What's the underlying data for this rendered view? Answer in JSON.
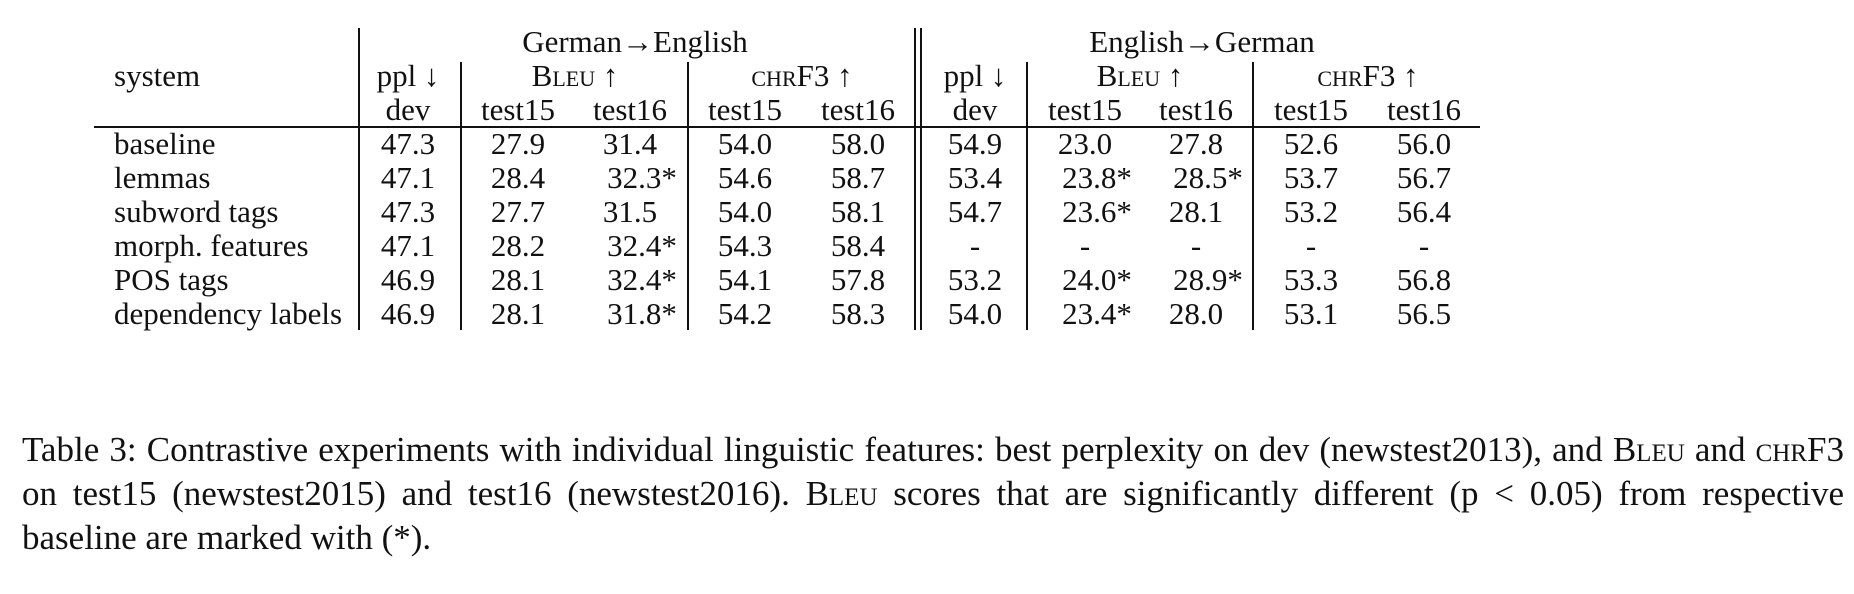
{
  "table": {
    "group_headers": [
      "German→English",
      "English→German"
    ],
    "system_header": "system",
    "metric_headers": {
      "ppl": "ppl ↓",
      "bleu": "Bleu ↑",
      "chrf": "chrF3 ↑"
    },
    "sub_headers": [
      "dev",
      "test15",
      "test16",
      "test15",
      "test16",
      "dev",
      "test15",
      "test16",
      "test15",
      "test16"
    ],
    "rows": [
      {
        "system": "baseline",
        "cells": [
          "47.3",
          "27.9",
          "31.4",
          "54.0",
          "58.0",
          "54.9",
          "23.0",
          "27.8",
          "52.6",
          "56.0"
        ]
      },
      {
        "system": "lemmas",
        "cells": [
          "47.1",
          "28.4",
          "32.3*",
          "54.6",
          "58.7",
          "53.4",
          "23.8*",
          "28.5*",
          "53.7",
          "56.7"
        ]
      },
      {
        "system": "subword tags",
        "cells": [
          "47.3",
          "27.7",
          "31.5",
          "54.0",
          "58.1",
          "54.7",
          "23.6*",
          "28.1",
          "53.2",
          "56.4"
        ]
      },
      {
        "system": "morph. features",
        "cells": [
          "47.1",
          "28.2",
          "32.4*",
          "54.3",
          "58.4",
          "-",
          "-",
          "-",
          "-",
          "-"
        ]
      },
      {
        "system": "POS tags",
        "cells": [
          "46.9",
          "28.1",
          "32.4*",
          "54.1",
          "57.8",
          "53.2",
          "24.0*",
          "28.9*",
          "53.3",
          "56.8"
        ]
      },
      {
        "system": "dependency labels",
        "cells": [
          "46.9",
          "28.1",
          "31.8*",
          "54.2",
          "58.3",
          "54.0",
          "23.4*",
          "28.0",
          "53.1",
          "56.5"
        ]
      }
    ]
  },
  "caption": {
    "part1": "Table 3: Contrastive experiments with individual linguistic features: best perplexity on dev (newstest2013), and ",
    "bleu1": "Bleu",
    "part2": " and ",
    "chrf": "chrF3",
    "part3": " on test15 (newstest2015) and test16 (newstest2016). ",
    "bleu2": "Bleu",
    "part4": " scores that are significantly different (p < 0.05) from respective baseline are marked with (*)."
  }
}
